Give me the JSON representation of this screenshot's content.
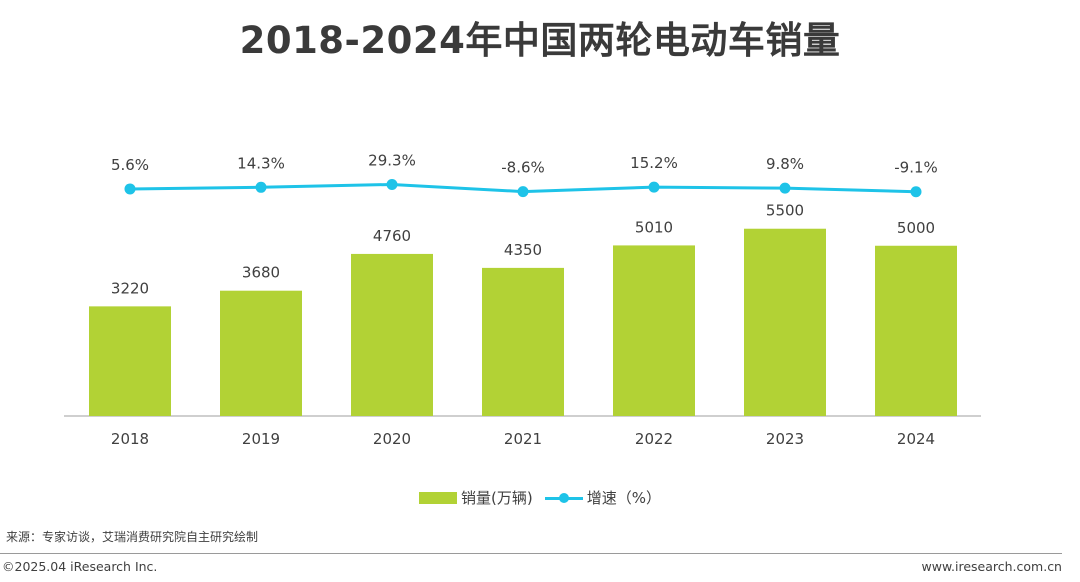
{
  "title": "2018-2024年中国两轮电动车销量",
  "chart_data": {
    "type": "bar",
    "categories": [
      "2018",
      "2019",
      "2020",
      "2021",
      "2022",
      "2023",
      "2024"
    ],
    "series": [
      {
        "name": "销量(万辆)",
        "type": "bar",
        "values": [
          3220,
          3680,
          4760,
          4350,
          5010,
          5500,
          5000
        ],
        "labels": [
          "3220",
          "3680",
          "4760",
          "4350",
          "5010",
          "5500",
          "5000"
        ],
        "color": "#b2d235"
      },
      {
        "name": "增速（%）",
        "type": "line",
        "values": [
          5.6,
          14.3,
          29.3,
          -8.6,
          15.2,
          9.8,
          -9.1
        ],
        "labels": [
          "5.6%",
          "14.3%",
          "29.3%",
          "-8.6%",
          "15.2%",
          "9.8%",
          "-9.1%"
        ],
        "color": "#1ec3e8"
      }
    ],
    "legend_position": "bottom",
    "grid": false
  },
  "source": "来源：专家访谈，艾瑞消费研究院自主研究绘制",
  "copyright": "©2025.04 iResearch Inc.",
  "website": "www.iresearch.com.cn"
}
